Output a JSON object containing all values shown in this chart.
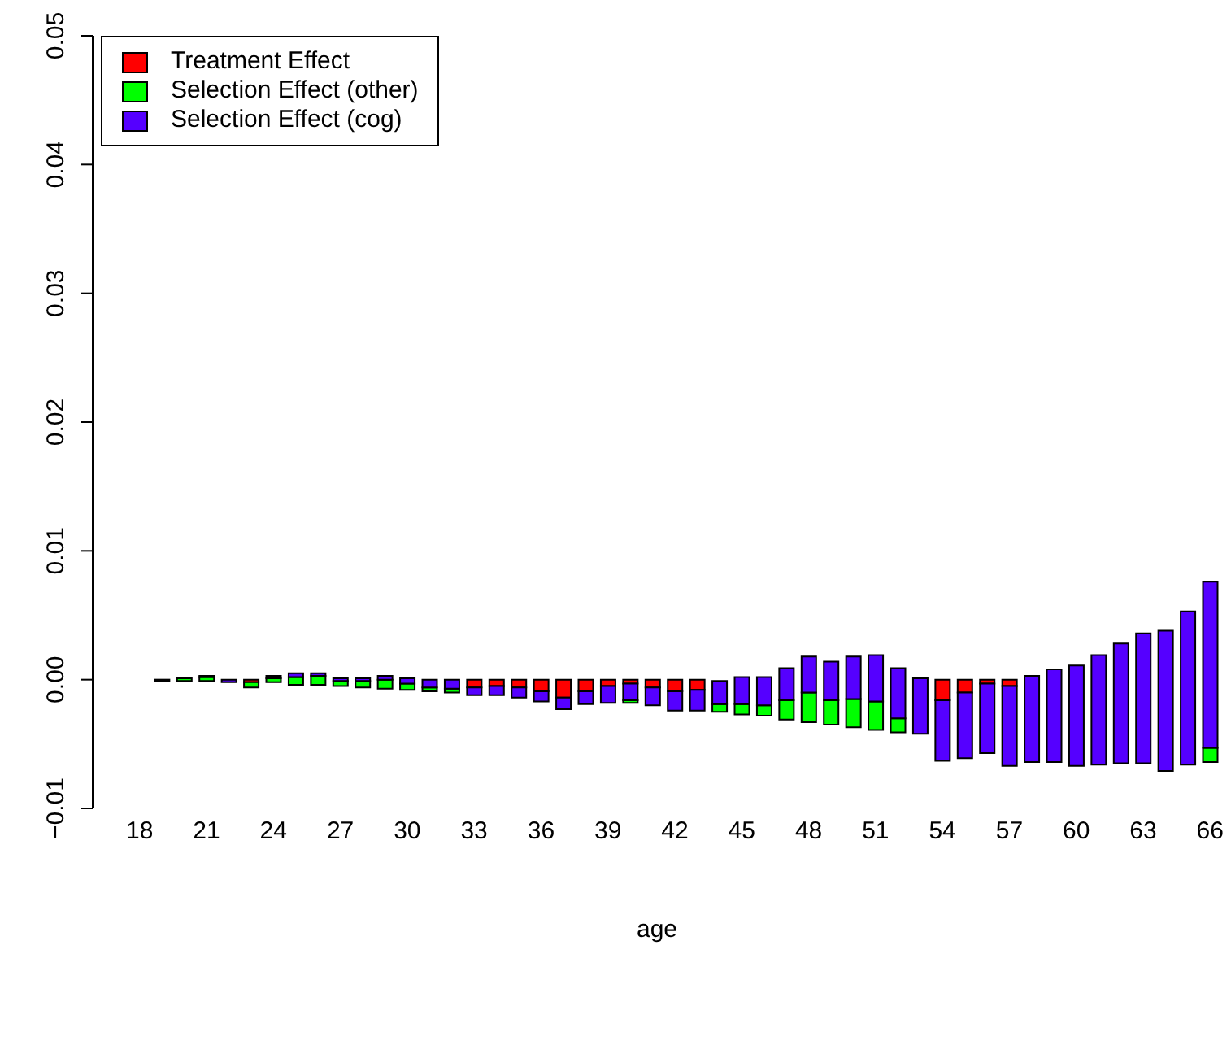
{
  "chart_data": {
    "type": "bar",
    "xlabel": "age",
    "categories": [
      "18",
      null,
      null,
      "21",
      null,
      null,
      "24",
      null,
      null,
      "27",
      null,
      null,
      "30",
      null,
      null,
      "33",
      null,
      null,
      "36",
      null,
      null,
      "39",
      null,
      null,
      "42",
      null,
      null,
      "45",
      null,
      null,
      "48",
      null,
      null,
      "51",
      null,
      null,
      "54",
      null,
      null,
      "57",
      null,
      null,
      "60",
      null,
      null,
      "63",
      null,
      null,
      "66"
    ],
    "series": [
      {
        "name": "Treatment Effect",
        "color": "#ff0000",
        "values": [
          null,
          null,
          null,
          null,
          null,
          -0.0002,
          null,
          null,
          null,
          null,
          null,
          null,
          null,
          null,
          null,
          -0.0006,
          -0.0005,
          -0.0006,
          -0.0009,
          -0.0014,
          -0.0009,
          -0.0005,
          -0.0003,
          -0.0006,
          -0.0009,
          -0.0008,
          null,
          null,
          null,
          null,
          null,
          null,
          null,
          null,
          null,
          null,
          -0.0016,
          -0.001,
          -0.0003,
          -0.0005,
          null,
          null,
          null,
          null,
          null,
          null,
          null,
          null,
          null
        ],
        "base": [
          null,
          null,
          null,
          null,
          null,
          0,
          null,
          null,
          null,
          null,
          null,
          null,
          null,
          null,
          null,
          0,
          0,
          0,
          0,
          0,
          0,
          0,
          0,
          0,
          0,
          0,
          null,
          null,
          null,
          null,
          null,
          null,
          null,
          null,
          null,
          null,
          0,
          0,
          0,
          0,
          null,
          null,
          null,
          null,
          null,
          null,
          null,
          null,
          null
        ]
      },
      {
        "name": "Selection Effect (other)",
        "color": "#00ff00",
        "values": [
          null,
          null,
          0.0002,
          0.0003,
          null,
          -0.0004,
          0.0003,
          0.0006,
          0.0007,
          0.0004,
          0.0005,
          0.0007,
          0.0005,
          0.0003,
          0.0003,
          null,
          null,
          null,
          null,
          null,
          null,
          null,
          0.0002,
          null,
          null,
          null,
          0.0006,
          0.0008,
          0.0008,
          0.0015,
          0.0023,
          0.0019,
          0.0022,
          0.0022,
          0.0011,
          null,
          null,
          null,
          null,
          null,
          null,
          null,
          null,
          null,
          null,
          null,
          null,
          null,
          0.0011
        ],
        "base": [
          null,
          null,
          -0.0001,
          -0.0001,
          null,
          -0.0002,
          -0.0002,
          -0.0004,
          -0.0004,
          -0.0005,
          -0.0006,
          -0.0007,
          -0.0008,
          -0.0009,
          -0.001,
          null,
          null,
          null,
          null,
          null,
          null,
          null,
          -0.0018,
          null,
          null,
          null,
          -0.0025,
          -0.0027,
          -0.0028,
          -0.0031,
          -0.0033,
          -0.0035,
          -0.0037,
          -0.0039,
          -0.0041,
          null,
          null,
          null,
          null,
          null,
          null,
          null,
          null,
          null,
          null,
          null,
          null,
          null,
          -0.0064
        ]
      },
      {
        "name": "Selection Effect (cog)",
        "color": "#5500ff",
        "values": [
          null,
          -0.0001,
          null,
          0.0001,
          -0.0002,
          null,
          0.0002,
          0.0003,
          0.0002,
          0.0002,
          0.0002,
          0.0003,
          0.0004,
          0.0006,
          0.0007,
          -0.0006,
          -0.0007,
          -0.0008,
          -0.0008,
          -0.0009,
          -0.001,
          -0.0013,
          0.0013,
          -0.0014,
          -0.0015,
          -0.0016,
          0.0018,
          0.0021,
          0.0022,
          0.0025,
          0.0028,
          0.003,
          0.0033,
          0.0036,
          0.0039,
          0.0043,
          -0.0047,
          -0.0051,
          -0.0054,
          -0.0062,
          0.0067,
          0.0072,
          0.0078,
          0.0085,
          0.0093,
          0.0101,
          0.0109,
          0.0119,
          0.0129
        ],
        "base": [
          null,
          0,
          null,
          0.0002,
          0,
          null,
          0.0001,
          0.0002,
          0.0003,
          -0.0001,
          -0.0001,
          0,
          -0.0003,
          -0.0006,
          -0.0007,
          -0.0006,
          -0.0005,
          -0.0006,
          -0.0009,
          -0.0014,
          -0.0009,
          -0.0005,
          -0.0016,
          -0.0006,
          -0.0009,
          -0.0008,
          -0.0019,
          -0.0019,
          -0.002,
          -0.0016,
          -0.001,
          -0.0016,
          -0.0015,
          -0.0017,
          -0.003,
          -0.0042,
          -0.0016,
          -0.001,
          -0.0003,
          -0.0005,
          -0.0064,
          -0.0064,
          -0.0067,
          -0.0066,
          -0.0065,
          -0.0065,
          -0.0071,
          -0.0066,
          -0.0053
        ]
      }
    ],
    "ylim": [
      -0.01,
      0.05
    ],
    "yticks": [
      {
        "value": -0.01,
        "label": "−0.01"
      },
      {
        "value": 0,
        "label": "0.00"
      },
      {
        "value": 0.01,
        "label": "0.01"
      },
      {
        "value": 0.02,
        "label": "0.02"
      },
      {
        "value": 0.03,
        "label": "0.03"
      },
      {
        "value": 0.04,
        "label": "0.04"
      },
      {
        "value": 0.05,
        "label": "0.05"
      }
    ],
    "legend": "top left"
  }
}
